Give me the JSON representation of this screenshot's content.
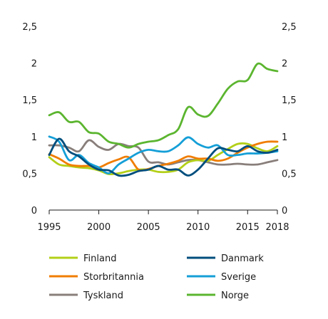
{
  "chart_data": {
    "type": "line",
    "title": "",
    "xlabel": "",
    "ylabel": "",
    "xlim": [
      1995,
      2018
    ],
    "ylim": [
      0,
      2.5
    ],
    "x_ticks": [
      "1995",
      "2000",
      "2005",
      "2010",
      "2015",
      "2018"
    ],
    "y_ticks": [
      "0",
      "0,5",
      "1",
      "1,5",
      "2",
      "2,5"
    ],
    "grid": false,
    "legend_position": "bottom",
    "x": [
      1995,
      1996,
      1997,
      1998,
      1999,
      2000,
      2001,
      2002,
      2003,
      2004,
      2005,
      2006,
      2007,
      2008,
      2009,
      2010,
      2011,
      2012,
      2013,
      2014,
      2015,
      2016,
      2017,
      2018
    ],
    "series": [
      {
        "name": "Finland",
        "color": "#b3cf18",
        "values": [
          0.72,
          0.62,
          0.6,
          0.58,
          0.57,
          0.54,
          0.49,
          0.5,
          0.53,
          0.55,
          0.55,
          0.52,
          0.52,
          0.55,
          0.65,
          0.68,
          0.67,
          0.75,
          0.83,
          0.9,
          0.9,
          0.84,
          0.8,
          0.87
        ]
      },
      {
        "name": "Danmark",
        "color": "#004e7d",
        "values": [
          0.75,
          0.97,
          0.8,
          0.73,
          0.62,
          0.55,
          0.54,
          0.47,
          0.48,
          0.53,
          0.55,
          0.6,
          0.55,
          0.55,
          0.47,
          0.55,
          0.7,
          0.84,
          0.82,
          0.8,
          0.87,
          0.8,
          0.78,
          0.82
        ]
      },
      {
        "name": "Storbritannia",
        "color": "#f07d00",
        "values": [
          0.76,
          0.7,
          0.62,
          0.6,
          0.6,
          0.58,
          0.64,
          0.69,
          0.72,
          0.55,
          0.56,
          0.6,
          0.63,
          0.67,
          0.73,
          0.7,
          0.7,
          0.67,
          0.7,
          0.78,
          0.85,
          0.9,
          0.93,
          0.93
        ]
      },
      {
        "name": "Sverige",
        "color": "#159fd7",
        "values": [
          1.0,
          0.93,
          0.68,
          0.75,
          0.64,
          0.58,
          0.5,
          0.62,
          0.7,
          0.78,
          0.82,
          0.8,
          0.8,
          0.88,
          0.99,
          0.9,
          0.85,
          0.88,
          0.75,
          0.75,
          0.77,
          0.77,
          0.78,
          0.8
        ]
      },
      {
        "name": "Tyskland",
        "color": "#887e7a",
        "values": [
          0.88,
          0.88,
          0.85,
          0.8,
          0.95,
          0.86,
          0.82,
          0.9,
          0.87,
          0.85,
          0.66,
          0.65,
          0.62,
          0.65,
          0.68,
          0.68,
          0.65,
          0.62,
          0.62,
          0.63,
          0.62,
          0.62,
          0.65,
          0.68
        ]
      },
      {
        "name": "Norge",
        "color": "#5bb52f",
        "values": [
          1.29,
          1.33,
          1.2,
          1.2,
          1.06,
          1.04,
          0.93,
          0.9,
          0.85,
          0.9,
          0.93,
          0.95,
          1.02,
          1.1,
          1.4,
          1.3,
          1.28,
          1.45,
          1.65,
          1.75,
          1.77,
          1.99,
          1.92,
          1.89
        ]
      }
    ],
    "legend_order": [
      "Finland",
      "Danmark",
      "Storbritannia",
      "Sverige",
      "Tyskland",
      "Norge"
    ]
  }
}
